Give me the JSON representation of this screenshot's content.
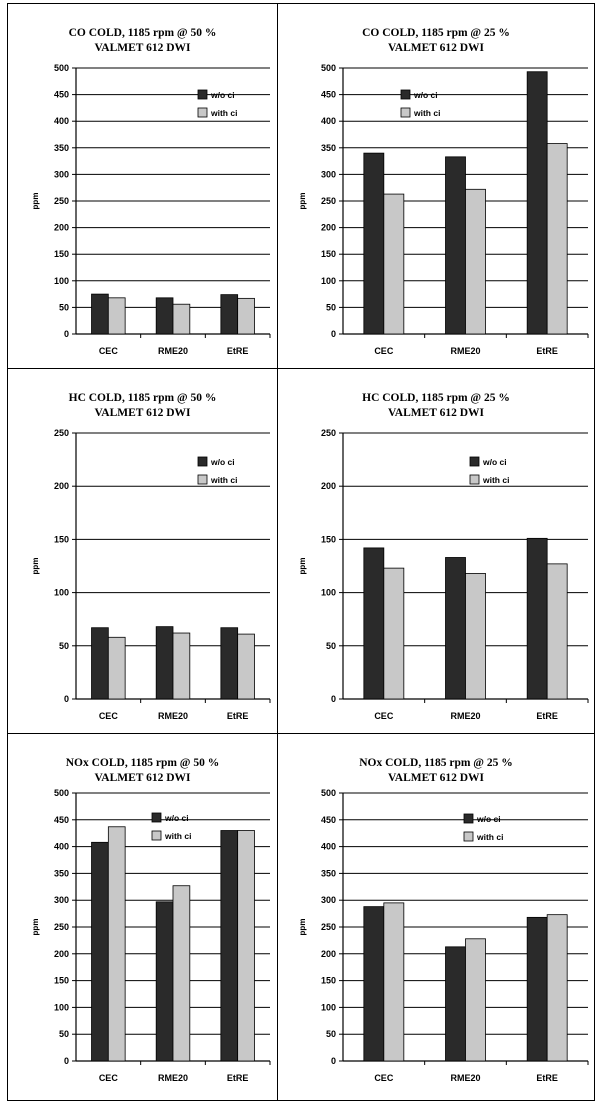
{
  "colors": {
    "series_without_ci": "#2a2a2a",
    "series_with_ci": "#c8c8c8",
    "gridline": "#000000",
    "background": "#ffffff"
  },
  "chart_data": [
    {
      "type": "bar",
      "title": "CO COLD, 1185 rpm @ 50 %",
      "subtitle": "VALMET 612 DWI",
      "ylabel": "ppm",
      "xlabel": "",
      "ylim": [
        0,
        500
      ],
      "yticks": [
        0,
        50,
        100,
        150,
        200,
        250,
        300,
        350,
        400,
        450,
        500
      ],
      "categories": [
        "CEC",
        "RME20",
        "EtRE"
      ],
      "series": [
        {
          "name": "w/o ci",
          "values": [
            75,
            68,
            74
          ]
        },
        {
          "name": "with ci",
          "values": [
            68,
            56,
            67
          ]
        }
      ],
      "legend": "top-right",
      "grid": true
    },
    {
      "type": "bar",
      "title": "CO COLD, 1185 rpm @ 25 %",
      "subtitle": "VALMET 612 DWI",
      "ylabel": "ppm",
      "xlabel": "",
      "ylim": [
        0,
        500
      ],
      "yticks": [
        0,
        50,
        100,
        150,
        200,
        250,
        300,
        350,
        400,
        450,
        500
      ],
      "categories": [
        "CEC",
        "RME20",
        "EtRE"
      ],
      "series": [
        {
          "name": "w/o ci",
          "values": [
            340,
            333,
            493
          ]
        },
        {
          "name": "with ci",
          "values": [
            263,
            272,
            358
          ]
        }
      ],
      "legend": "top-right",
      "grid": true
    },
    {
      "type": "bar",
      "title": "HC COLD, 1185 rpm @ 50 %",
      "subtitle": "VALMET 612 DWI",
      "ylabel": "ppm",
      "xlabel": "",
      "ylim": [
        0,
        250
      ],
      "yticks": [
        0,
        50,
        100,
        150,
        200,
        250
      ],
      "categories": [
        "CEC",
        "RME20",
        "EtRE"
      ],
      "series": [
        {
          "name": "w/o ci",
          "values": [
            67,
            68,
            67
          ]
        },
        {
          "name": "with ci",
          "values": [
            58,
            62,
            61
          ]
        }
      ],
      "legend": "top-right",
      "grid": true
    },
    {
      "type": "bar",
      "title": "HC COLD, 1185 rpm @ 25 %",
      "subtitle": "VALMET 612 DWI",
      "ylabel": "ppm",
      "xlabel": "",
      "ylim": [
        0,
        250
      ],
      "yticks": [
        0,
        50,
        100,
        150,
        200,
        250
      ],
      "categories": [
        "CEC",
        "RME20",
        "EtRE"
      ],
      "series": [
        {
          "name": "w/o ci",
          "values": [
            142,
            133,
            151
          ]
        },
        {
          "name": "with ci",
          "values": [
            123,
            118,
            127
          ]
        }
      ],
      "legend": "top-right",
      "grid": true
    },
    {
      "type": "bar",
      "title": "NOx COLD, 1185 rpm @ 50 %",
      "subtitle": "VALMET 612 DWI",
      "ylabel": "ppm",
      "xlabel": "",
      "ylim": [
        0,
        500
      ],
      "yticks": [
        0,
        50,
        100,
        150,
        200,
        250,
        300,
        350,
        400,
        450,
        500
      ],
      "categories": [
        "CEC",
        "RME20",
        "EtRE"
      ],
      "series": [
        {
          "name": "w/o ci",
          "values": [
            408,
            297,
            430
          ]
        },
        {
          "name": "with ci",
          "values": [
            437,
            327,
            430
          ]
        }
      ],
      "legend": "top-center",
      "grid": true
    },
    {
      "type": "bar",
      "title": "NOx COLD, 1185 rpm @ 25 %",
      "subtitle": "VALMET 612 DWI",
      "ylabel": "ppm",
      "xlabel": "",
      "ylim": [
        0,
        500
      ],
      "yticks": [
        0,
        50,
        100,
        150,
        200,
        250,
        300,
        350,
        400,
        450,
        500
      ],
      "categories": [
        "CEC",
        "RME20",
        "EtRE"
      ],
      "series": [
        {
          "name": "w/o ci",
          "values": [
            288,
            213,
            268
          ]
        },
        {
          "name": "with ci",
          "values": [
            295,
            228,
            273
          ]
        }
      ],
      "legend": "top-right",
      "grid": true
    }
  ]
}
